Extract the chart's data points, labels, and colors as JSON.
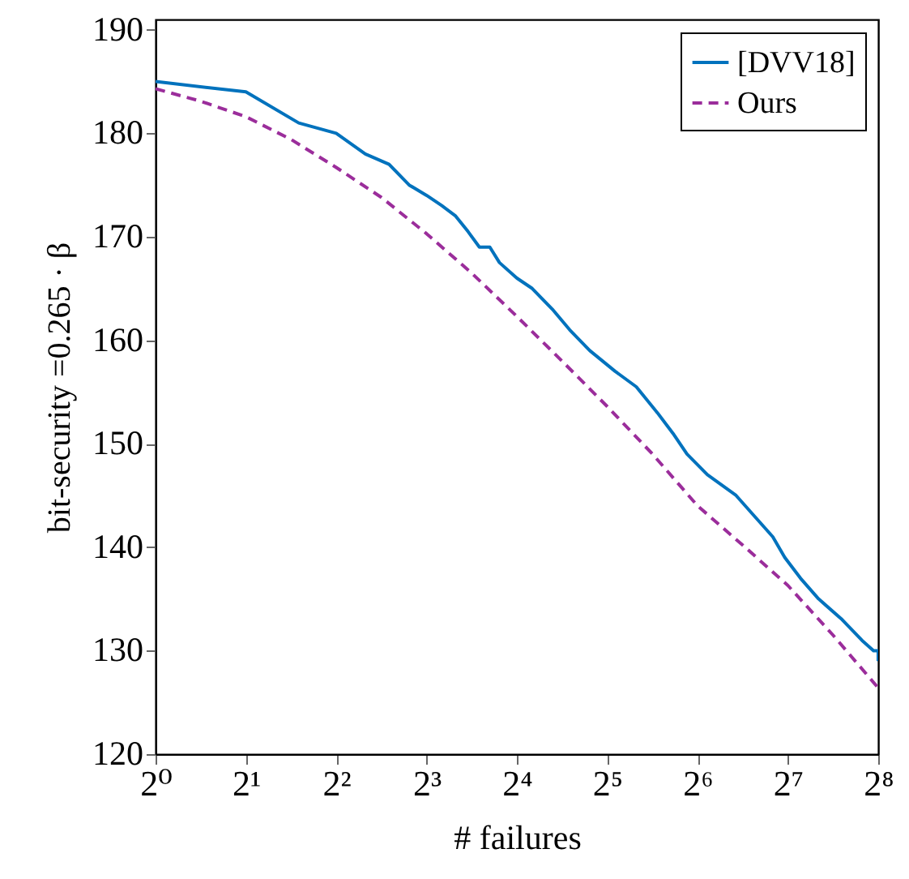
{
  "chart_data": {
    "type": "line",
    "xlabel": "# failures",
    "ylabel": "bit-security =0.265 · β",
    "log": "x",
    "xlim": [
      1,
      256
    ],
    "xticks": [
      {
        "value": 1,
        "label": "2⁰"
      },
      {
        "value": 2,
        "label": "2¹"
      },
      {
        "value": 4,
        "label": "2²"
      },
      {
        "value": 8,
        "label": "2³"
      },
      {
        "value": 16,
        "label": "2⁴"
      },
      {
        "value": 32,
        "label": "2⁵"
      },
      {
        "value": 64,
        "label": "2⁶"
      },
      {
        "value": 128,
        "label": "2⁷"
      },
      {
        "value": 256,
        "label": "2⁸"
      }
    ],
    "ylim": [
      120,
      191
    ],
    "yticks": [
      120,
      130,
      140,
      150,
      160,
      170,
      180,
      190
    ],
    "legend": "top right",
    "series": [
      {
        "name": "[DVV18]",
        "color": "#0072bd",
        "line_style": "solid",
        "x": [
          1,
          2,
          3,
          4,
          5,
          6,
          7,
          8,
          9,
          10,
          11,
          12,
          13,
          14,
          16,
          18,
          21,
          24,
          28,
          34,
          40,
          47,
          53,
          59,
          69,
          86,
          99,
          114,
          125,
          141,
          162,
          194,
          226,
          247,
          256,
          256
        ],
        "values": [
          185,
          184,
          181,
          180,
          178,
          177,
          175,
          174,
          173,
          172,
          170.5,
          169,
          169,
          167.5,
          166,
          165,
          163,
          161,
          159,
          157,
          155.5,
          153,
          151,
          149,
          147,
          145,
          143,
          141,
          139,
          137,
          135,
          133,
          131,
          130,
          130,
          129
        ]
      },
      {
        "name": "Ours",
        "color": "#9b2d9b",
        "line_style": "dashed",
        "x": [
          1,
          1.414,
          2,
          2.83,
          4,
          5.66,
          8,
          11.3,
          16,
          22.6,
          32,
          45.3,
          64,
          90.5,
          128,
          181,
          256
        ],
        "values": [
          184.3,
          183.1,
          181.6,
          179.4,
          176.7,
          173.8,
          170.3,
          166.5,
          162.3,
          158,
          153.6,
          149,
          144,
          140.2,
          136.3,
          131.5,
          126.4
        ]
      }
    ]
  }
}
